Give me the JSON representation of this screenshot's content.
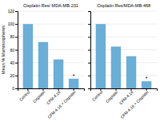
{
  "chart_data": [
    {
      "type": "bar",
      "title": "Cisplatin Res/ MDA-MB-231",
      "categories": [
        "Control",
        "Cisplatin",
        "CFM-4.16",
        "CFM-4.16 + Cisplatin"
      ],
      "values": [
        100,
        72,
        45,
        15
      ],
      "color": "#6baed6",
      "ylabel": "Mean % Mammospheres",
      "ylim": [
        0,
        120
      ],
      "yticks": [
        0,
        20,
        40,
        60,
        80,
        100,
        120
      ],
      "grid": true,
      "annotations": [
        {
          "text": "*",
          "x": "CFM-4.16 + Cisplatin"
        }
      ]
    },
    {
      "type": "bar",
      "title": "Cisplatin Res/MDA-MB-468",
      "categories": [
        "Control",
        "Cisplatin",
        "CFM-4.16",
        "CFM-4.16 + Cisplatin"
      ],
      "values": [
        100,
        65,
        50,
        11
      ],
      "color": "#6baed6",
      "ylim": [
        0,
        120
      ],
      "yticks": [
        0,
        20,
        40,
        60,
        80,
        100,
        120
      ],
      "grid": true,
      "tick_labels": "x",
      "annotations": [
        {
          "text": "*",
          "x": "CFM-4.16 + Cisplatin"
        }
      ]
    }
  ]
}
